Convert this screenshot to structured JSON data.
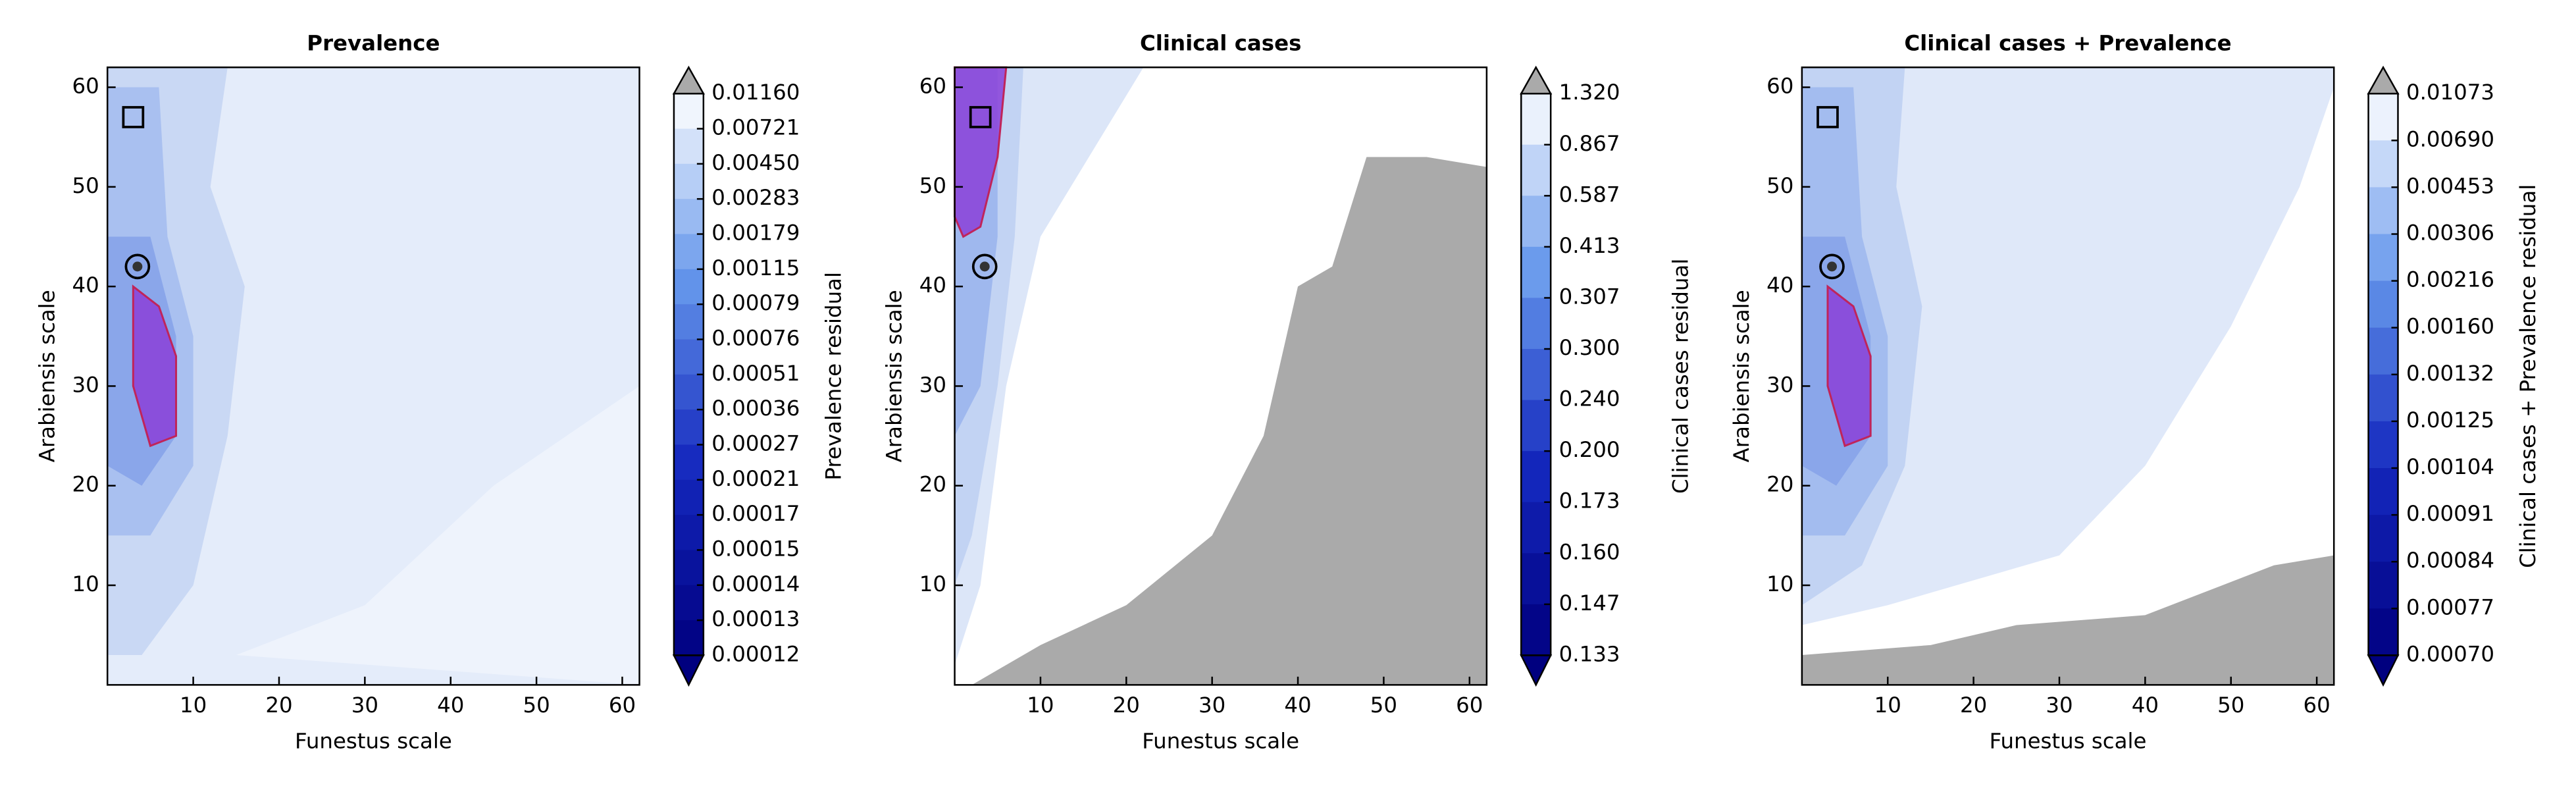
{
  "chart_data": [
    {
      "type": "contour",
      "title": "Prevalence",
      "x_label": "Funestus scale",
      "y_label": "Arabiensis scale",
      "xlim": [
        0,
        62
      ],
      "ylim": [
        0,
        62
      ],
      "xticks": [
        10,
        20,
        30,
        40,
        50,
        60
      ],
      "yticks": [
        10,
        20,
        30,
        40,
        50,
        60
      ],
      "colorbar_label": "Prevalence residual",
      "colorbar_ticks": [
        {
          "value": 0.0116,
          "label": "0.01160"
        },
        0.00721,
        {
          "value": 0.0045,
          "label": "0.00450"
        },
        0.00283,
        0.00179,
        0.00115,
        0.00079,
        0.00076,
        0.00051,
        0.00036,
        0.00027,
        0.00021,
        0.00017,
        0.00015,
        0.00014,
        0.00013,
        0.00012
      ]
    },
    {
      "type": "contour",
      "title": "Clinical cases",
      "x_label": "Funestus scale",
      "y_label": "Arabiensis scale",
      "xlim": [
        0,
        62
      ],
      "ylim": [
        0,
        62
      ],
      "xticks": [
        10,
        20,
        30,
        40,
        50,
        60
      ],
      "yticks": [
        10,
        20,
        30,
        40,
        50,
        60
      ],
      "colorbar_label": "Clinical cases residual",
      "colorbar_ticks": [
        {
          "value": 1.32,
          "label": "1.320"
        },
        0.867,
        0.587,
        0.413,
        0.307,
        {
          "value": 0.3,
          "label": "0.300"
        },
        {
          "value": 0.24,
          "label": "0.240"
        },
        {
          "value": 0.2,
          "label": "0.200"
        },
        0.173,
        {
          "value": 0.16,
          "label": "0.160"
        },
        0.147,
        0.133
      ]
    },
    {
      "type": "contour",
      "title": "Clinical cases + Prevalence",
      "x_label": "Funestus scale",
      "y_label": "Arabiensis scale",
      "xlim": [
        0,
        62
      ],
      "ylim": [
        0,
        62
      ],
      "xticks": [
        10,
        20,
        30,
        40,
        50,
        60
      ],
      "yticks": [
        10,
        20,
        30,
        40,
        50,
        60
      ],
      "colorbar_label": "Clinical cases + Prevalence residual",
      "colorbar_ticks": [
        0.01073,
        {
          "value": 0.0069,
          "label": "0.00690"
        },
        0.00453,
        0.00306,
        0.00216,
        {
          "value": 0.0016,
          "label": "0.00160"
        },
        0.00132,
        0.00125,
        0.00104,
        0.00091,
        0.00084,
        0.00077,
        {
          "value": 0.0007,
          "label": "0.00070"
        }
      ]
    }
  ]
}
